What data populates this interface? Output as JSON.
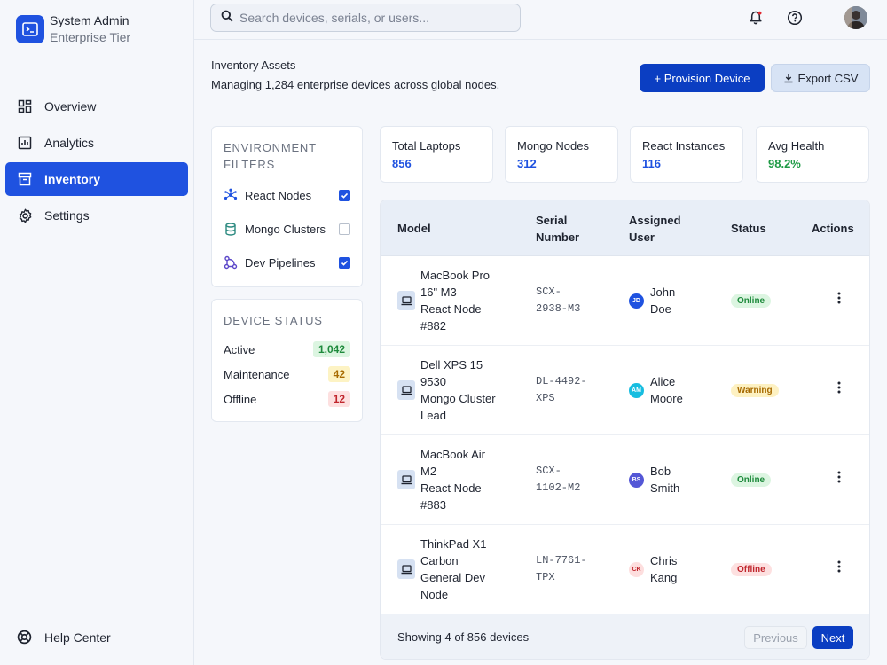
{
  "brand": {
    "title": "System Admin",
    "subtitle": "Enterprise Tier",
    "logo_icon": "terminal-icon"
  },
  "nav": {
    "items": [
      {
        "label": "Overview",
        "icon": "dashboard-icon",
        "active": false
      },
      {
        "label": "Analytics",
        "icon": "bar-chart-icon",
        "active": false
      },
      {
        "label": "Inventory",
        "icon": "archive-icon",
        "active": true
      },
      {
        "label": "Settings",
        "icon": "gear-icon",
        "active": false
      }
    ],
    "help_label": "Help Center"
  },
  "topbar": {
    "search_placeholder": "Search devices, serials, or users...",
    "search_value": ""
  },
  "header": {
    "title": "Inventory Assets",
    "subtitle": "Managing 1,284 enterprise devices across global nodes.",
    "provision_label": "+ Provision Device",
    "export_label": "Export CSV"
  },
  "filters": {
    "heading_line1": "ENVIRONMENT",
    "heading_line2": "FILTERS",
    "items": [
      {
        "label": "React Nodes",
        "checked": true
      },
      {
        "label": "Mongo Clusters",
        "checked": false
      },
      {
        "label": "Dev Pipelines",
        "checked": true
      }
    ]
  },
  "device_status": {
    "heading": "DEVICE STATUS",
    "rows": [
      {
        "label": "Active",
        "count": "1,042",
        "color": "#1e8a3c",
        "bg": "#dcf5e1"
      },
      {
        "label": "Maintenance",
        "count": "42",
        "color": "#a76a00",
        "bg": "#fdf3c4"
      },
      {
        "label": "Offline",
        "count": "12",
        "color": "#c0262d",
        "bg": "#fde0e0"
      }
    ]
  },
  "stats": [
    {
      "label": "Total Laptops",
      "value": "856",
      "color": "#1f52e0"
    },
    {
      "label": "Mongo Nodes",
      "value": "312",
      "color": "#1f52e0"
    },
    {
      "label": "React Instances",
      "value": "116",
      "color": "#1f52e0"
    },
    {
      "label": "Avg Health",
      "value": "98.2%",
      "color": "#1e9a45"
    }
  ],
  "table": {
    "headers": {
      "model": "Model",
      "serial_1": "Serial",
      "serial_2": "Number",
      "user_1": "Assigned",
      "user_2": "User",
      "status": "Status",
      "actions": "Actions"
    },
    "rows": [
      {
        "model_lines": [
          "MacBook Pro",
          "16\" M3",
          "React Node",
          "#882"
        ],
        "serial_lines": [
          "SCX-",
          "2938-M3"
        ],
        "initials": "JD",
        "badge_bg": "#1f52e0",
        "badge_fg": "#ffffff",
        "user_lines": [
          "John",
          "Doe"
        ],
        "status": "Online",
        "status_fg": "#1e8a3c",
        "status_bg": "#dcf5e1"
      },
      {
        "model_lines": [
          "Dell XPS 15",
          "9530",
          "Mongo Cluster",
          "Lead"
        ],
        "serial_lines": [
          "DL-4492-",
          "XPS"
        ],
        "initials": "AM",
        "badge_bg": "#17bde0",
        "badge_fg": "#ffffff",
        "user_lines": [
          "Alice",
          "Moore"
        ],
        "status": "Warning",
        "status_fg": "#a76a00",
        "status_bg": "#fdf1c2"
      },
      {
        "model_lines": [
          "MacBook Air",
          "M2",
          "React Node",
          "#883"
        ],
        "serial_lines": [
          "SCX-",
          "1102-M2"
        ],
        "initials": "BS",
        "badge_bg": "#5457d6",
        "badge_fg": "#ffffff",
        "user_lines": [
          "Bob",
          "Smith"
        ],
        "status": "Online",
        "status_fg": "#1e8a3c",
        "status_bg": "#dcf5e1"
      },
      {
        "model_lines": [
          "ThinkPad X1",
          "Carbon",
          "General Dev",
          "Node"
        ],
        "serial_lines": [
          "LN-7761-",
          "TPX"
        ],
        "initials": "CK",
        "badge_bg": "#fddede",
        "badge_fg": "#c0262d",
        "user_lines": [
          "Chris",
          "Kang"
        ],
        "status": "Offline",
        "status_fg": "#c0262d",
        "status_bg": "#fde0e0"
      }
    ],
    "footer_text": "Showing 4 of 856 devices",
    "prev_label": "Previous",
    "next_label": "Next"
  }
}
